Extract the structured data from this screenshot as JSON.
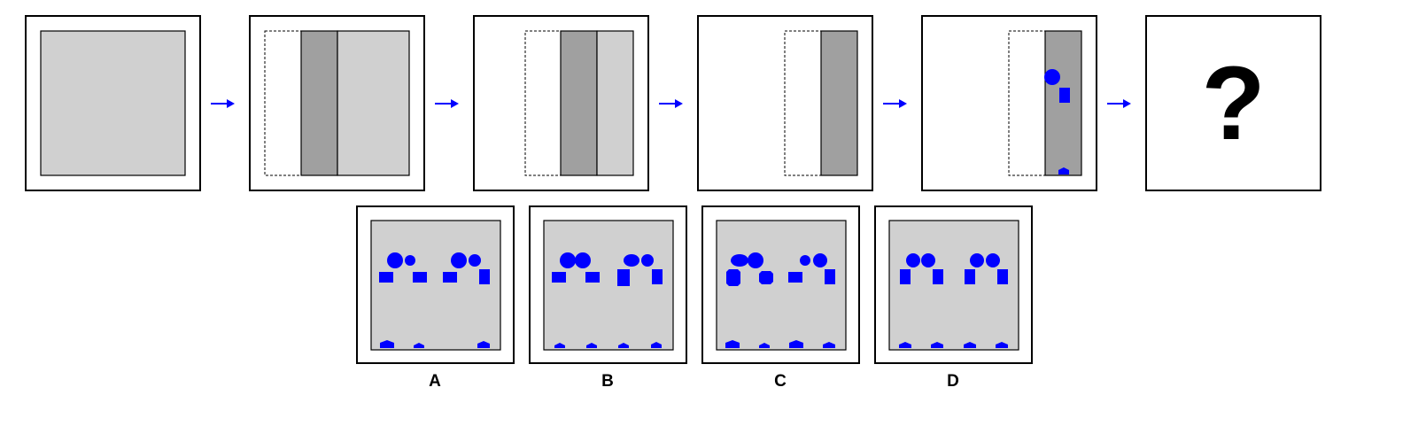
{
  "colors": {
    "light_gray": "#d0d0d0",
    "dark_gray": "#a0a0a0",
    "shape_blue": "#0000ff",
    "arrow_blue": "#0000ff",
    "border": "#000000"
  },
  "sequence": {
    "arrow_icon": "right-arrow-icon",
    "steps": [
      {
        "name": "step-1",
        "description_visible": false
      },
      {
        "name": "step-2",
        "description_visible": false
      },
      {
        "name": "step-3",
        "description_visible": false
      },
      {
        "name": "step-4",
        "description_visible": false
      },
      {
        "name": "step-5",
        "description_visible": false
      },
      {
        "name": "step-6-unknown",
        "description_visible": false
      }
    ],
    "question_mark": "?"
  },
  "options": [
    {
      "label": "A"
    },
    {
      "label": "B"
    },
    {
      "label": "C"
    },
    {
      "label": "D"
    }
  ]
}
